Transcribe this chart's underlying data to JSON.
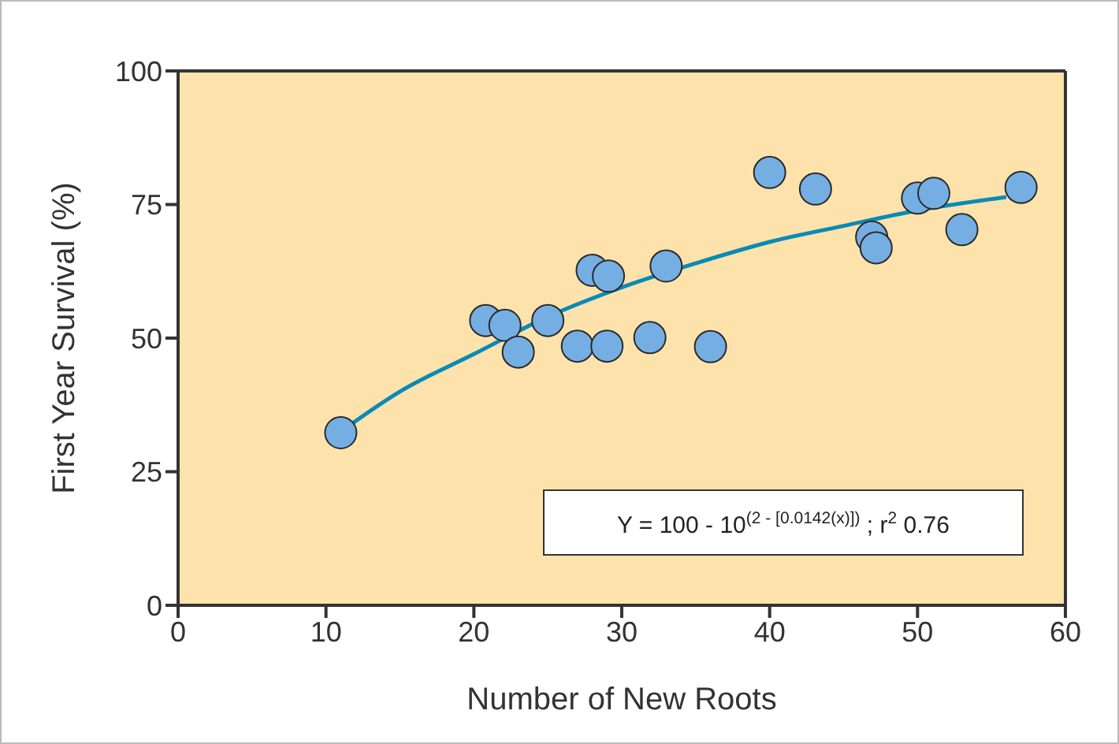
{
  "chart_data": {
    "type": "scatter",
    "xlabel": "Number of New Roots",
    "ylabel": "First Year Survival (%)",
    "xlim": [
      0,
      60
    ],
    "xticks": [
      0,
      10,
      20,
      30,
      40,
      50,
      60
    ],
    "ylim": [
      0,
      100
    ],
    "yticks": [
      0,
      25,
      50,
      75,
      100
    ],
    "grid": false,
    "legend": false,
    "marker": "circle",
    "series": [
      {
        "color": "#75aee3",
        "x": [
          11,
          20.8,
          22.1,
          23,
          25,
          27,
          28,
          29.1,
          29,
          31.9,
          33,
          36,
          40,
          43.1,
          46.9,
          47.2,
          50,
          51.1,
          53,
          57
        ],
        "values": [
          32.3,
          53.3,
          52.4,
          47.4,
          53.3,
          48.5,
          62.7,
          61.6,
          48.5,
          50.1,
          63.5,
          48.4,
          81,
          77.9,
          68.9,
          66.9,
          76.2,
          77.1,
          70.3,
          78.2
        ]
      },
      {
        "type": "line",
        "marker": "none",
        "color": "#0a8ab8",
        "x": [
          11,
          15,
          20,
          25,
          30,
          35,
          40,
          45,
          50,
          56
        ],
        "values": [
          32.5,
          40,
          47,
          54,
          59.5,
          64,
          68,
          71,
          73.9,
          76.4
        ]
      }
    ],
    "annotations": [
      "Y = 100 - 10$^{(2 - [0.0142(x)])}$ ; r$^{2}$ 0.76"
    ]
  }
}
